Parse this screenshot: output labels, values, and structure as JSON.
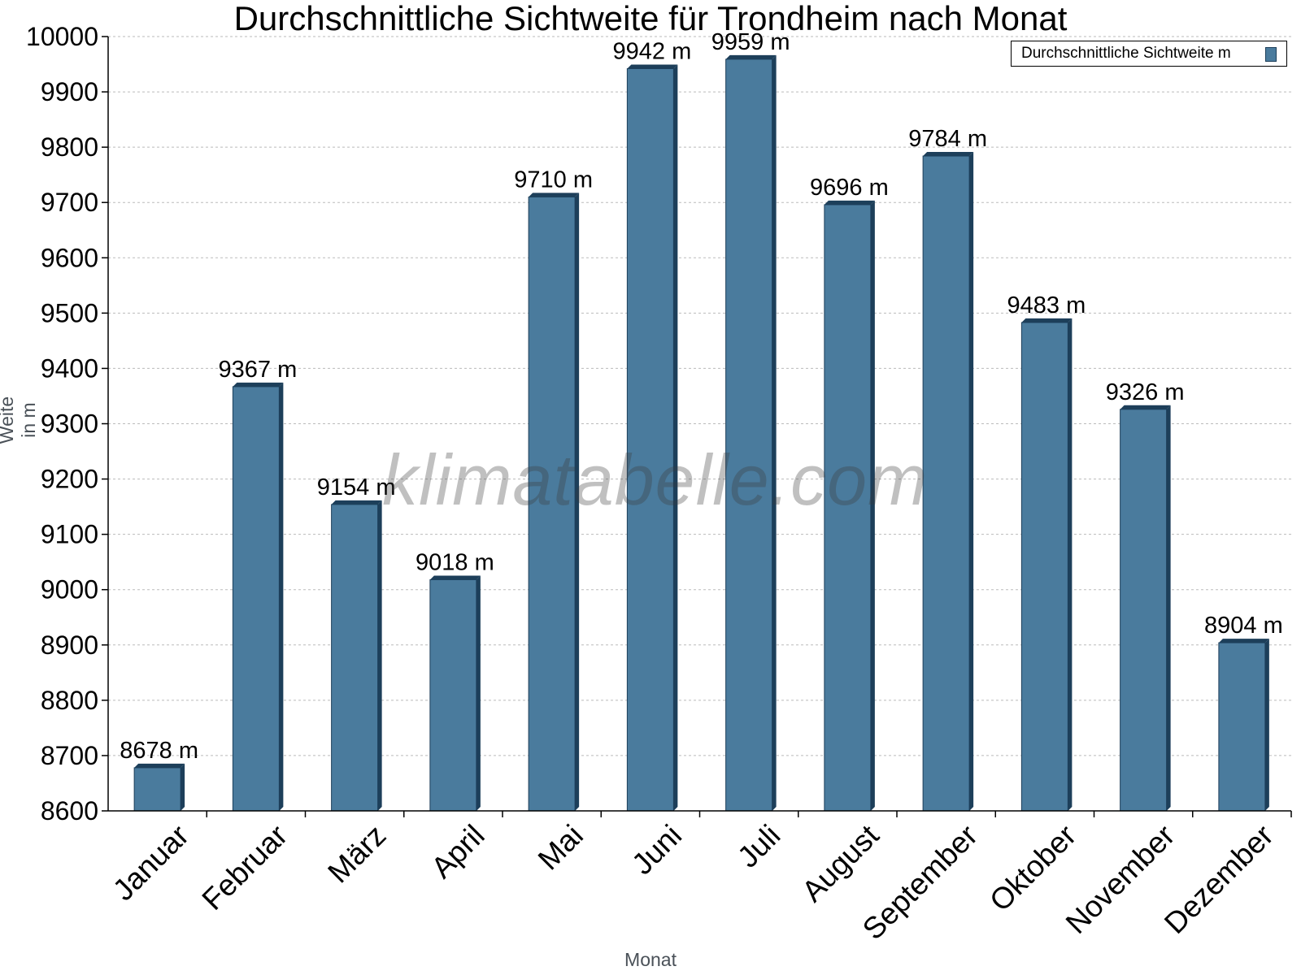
{
  "chart_data": {
    "type": "bar",
    "title": "Durchschnittliche Sichtweite für Trondheim nach Monat",
    "xlabel": "Monat",
    "ylabel": "Weite in m",
    "ylim": [
      8600,
      10000
    ],
    "yticks": [
      8600,
      8700,
      8800,
      8900,
      9000,
      9100,
      9200,
      9300,
      9400,
      9500,
      9600,
      9700,
      9800,
      9900,
      10000
    ],
    "categories": [
      "Januar",
      "Februar",
      "März",
      "April",
      "Mai",
      "Juni",
      "Juli",
      "August",
      "September",
      "Oktober",
      "November",
      "Dezember"
    ],
    "series": [
      {
        "name": "Durchschnittliche Sichtweite m",
        "values": [
          8678,
          9367,
          9154,
          9018,
          9710,
          9942,
          9959,
          9696,
          9784,
          9483,
          9326,
          8904
        ],
        "labels": [
          "8678 m",
          "9367 m",
          "9154 m",
          "9018 m",
          "9710 m",
          "9942 m",
          "9959 m",
          "9696 m",
          "9784 m",
          "9483 m",
          "9326 m",
          "8904 m"
        ]
      }
    ],
    "grid": true,
    "legend_position": "top-right",
    "colors": {
      "bar": "#4a7b9d",
      "bar_edge": "#1d3f5a",
      "grid": "#bbbbbb",
      "axis": "#000000"
    },
    "watermark": "klimatabelle.com"
  }
}
